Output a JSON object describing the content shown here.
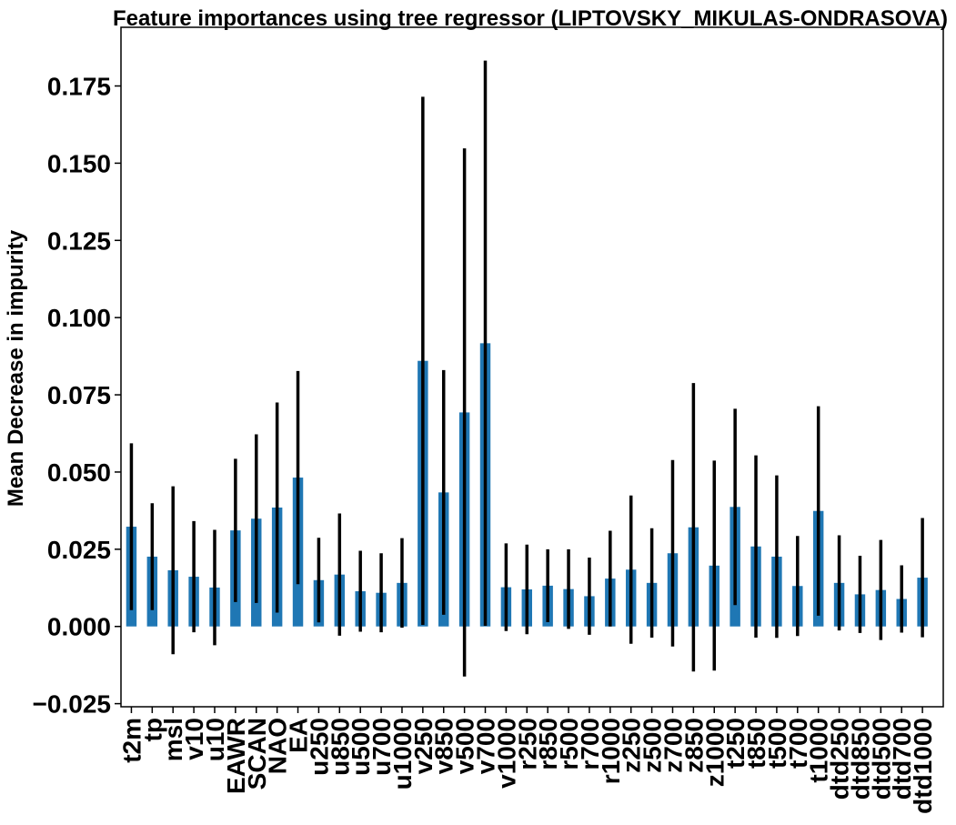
{
  "chart_data": {
    "type": "bar",
    "title": "Feature importances using tree regressor (LIPTOVSKY_MIKULAS-ONDRASOVA)",
    "ylabel": "Mean Decrease in impurity",
    "xlabel": "",
    "ylim": [
      -0.026,
      0.194
    ],
    "yticks": [
      "0.175",
      "0.150",
      "0.125",
      "0.100",
      "0.075",
      "0.050",
      "0.025",
      "0.000",
      "−0.025"
    ],
    "ytick_values": [
      0.175,
      0.15,
      0.125,
      0.1,
      0.075,
      0.05,
      0.025,
      0.0,
      -0.025
    ],
    "categories": [
      "t2m",
      "tp",
      "msl",
      "v10",
      "u10",
      "EAWR",
      "SCAN",
      "NAO",
      "EA",
      "u250",
      "u850",
      "u500",
      "u700",
      "u1000",
      "v250",
      "v850",
      "v500",
      "v700",
      "v1000",
      "r250",
      "r850",
      "r500",
      "r700",
      "r1000",
      "z250",
      "z500",
      "z700",
      "z850",
      "z1000",
      "t250",
      "t850",
      "t500",
      "t700",
      "t1000",
      "dtd250",
      "dtd850",
      "dtd500",
      "dtd700",
      "dtd1000"
    ],
    "values": [
      0.0323,
      0.0226,
      0.0182,
      0.0161,
      0.0126,
      0.0311,
      0.0349,
      0.0385,
      0.0482,
      0.015,
      0.0168,
      0.0114,
      0.0109,
      0.0141,
      0.086,
      0.0434,
      0.0693,
      0.0917,
      0.0127,
      0.012,
      0.0132,
      0.0121,
      0.0098,
      0.0155,
      0.0184,
      0.0141,
      0.0237,
      0.0321,
      0.0197,
      0.0387,
      0.0259,
      0.0226,
      0.0131,
      0.0374,
      0.0141,
      0.0104,
      0.0118,
      0.0089,
      0.0158
    ],
    "errors": [
      0.027,
      0.0173,
      0.0272,
      0.018,
      0.0187,
      0.0232,
      0.0273,
      0.034,
      0.0345,
      0.0137,
      0.0198,
      0.0131,
      0.0128,
      0.0145,
      0.0855,
      0.0396,
      0.0855,
      0.0915,
      0.0142,
      0.0145,
      0.0118,
      0.0129,
      0.0125,
      0.0155,
      0.024,
      0.0177,
      0.0302,
      0.0467,
      0.034,
      0.0318,
      0.0295,
      0.0263,
      0.0162,
      0.0339,
      0.0154,
      0.0125,
      0.0162,
      0.0109,
      0.0193
    ],
    "color": "#1f77b4",
    "error_color": "#000000",
    "grid": false,
    "legend": "none"
  }
}
